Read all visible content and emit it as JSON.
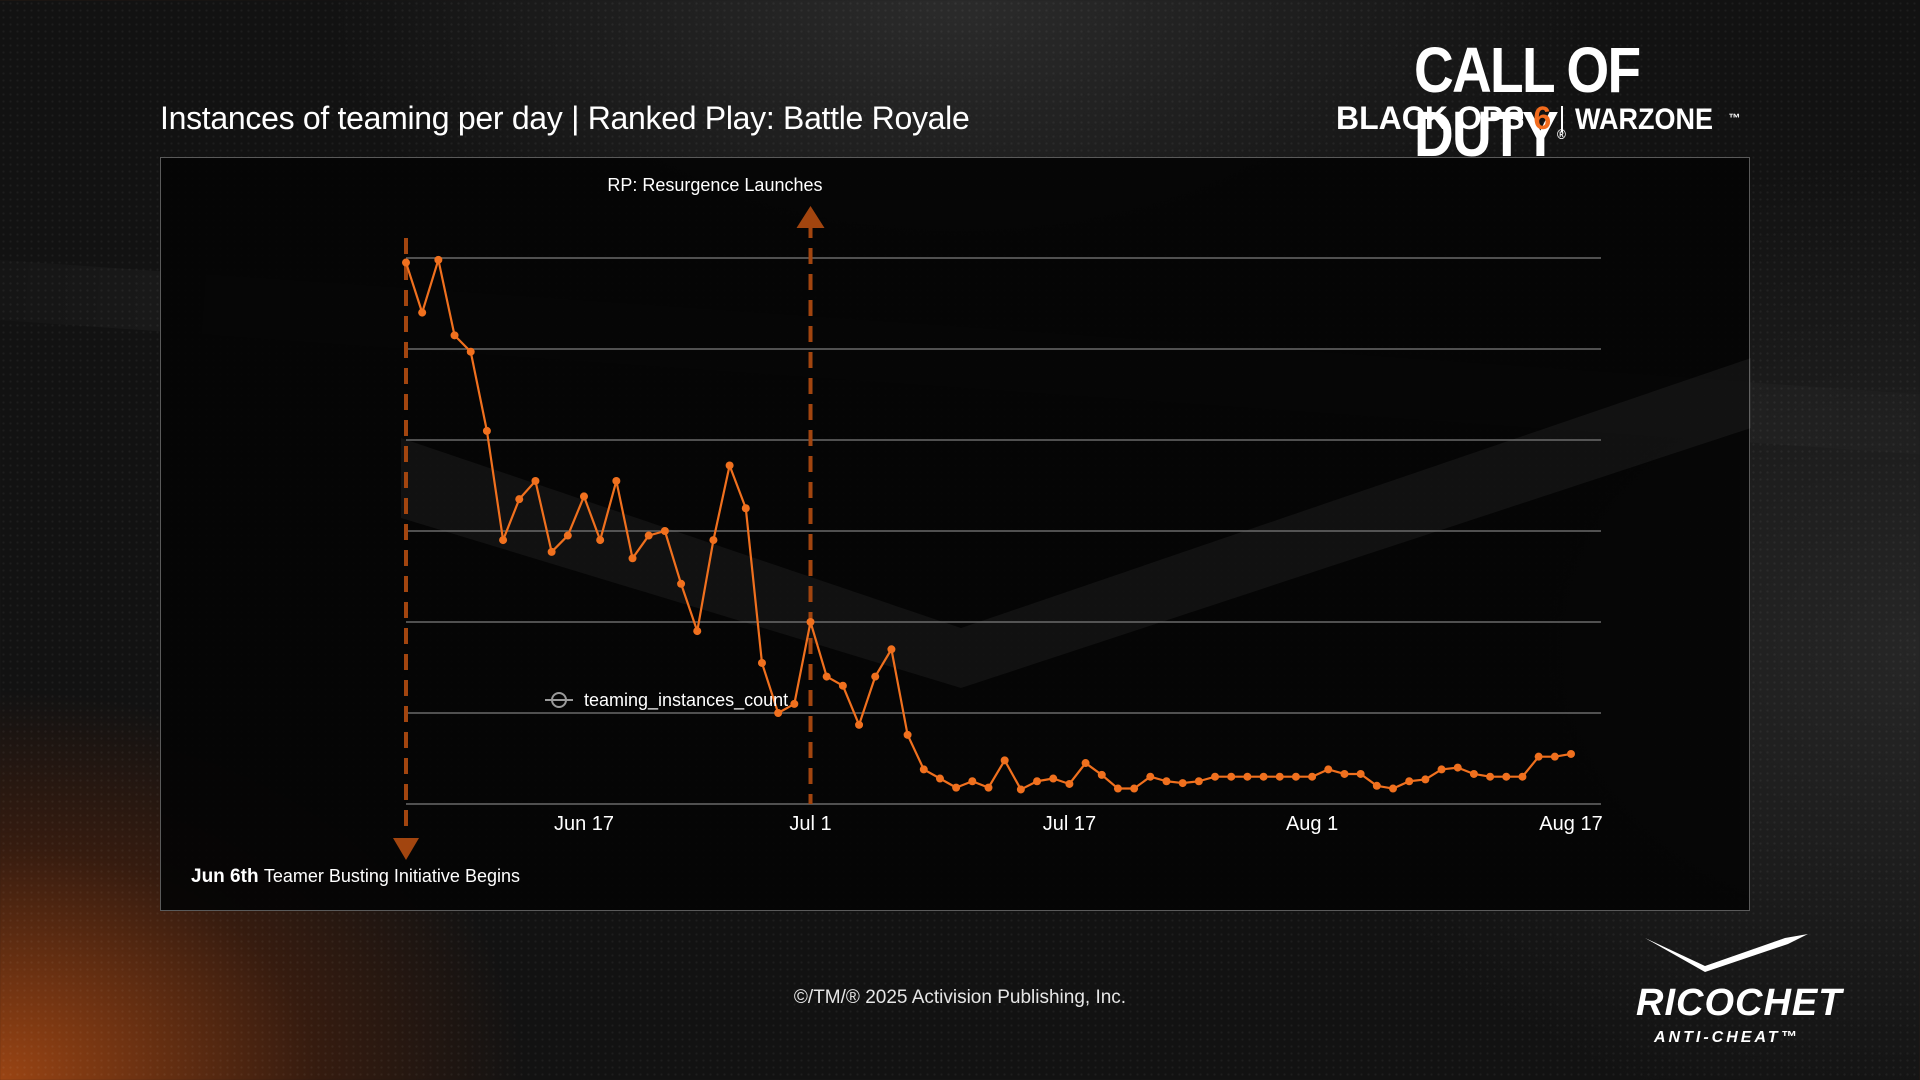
{
  "header": {
    "title": "Instances of teaming per day | Ranked Play: Battle Royale"
  },
  "logo": {
    "line1": "CALL OF DUTY",
    "line2_part1": "BLACK OPS ",
    "line2_part2": "6",
    "line2_part3": "WARZONE",
    "trademark": "™",
    "registered": "®"
  },
  "footer": {
    "copyright": "©/TM/® 2025 Activision Publishing, Inc."
  },
  "ricochet": {
    "name": "RICOCHET",
    "sub": "ANTI-CHEAT™"
  },
  "colors": {
    "series": "#f0701e",
    "annotation": "#a2450f",
    "grid": "#6a6a6a",
    "background": "#121212"
  },
  "chart_data": {
    "type": "line",
    "title": "Instances of teaming per day | Ranked Play: Battle Royale",
    "xlabel": "",
    "ylabel": "",
    "grid": true,
    "y_tick_labels_shown": false,
    "ylim": [
      0,
      6
    ],
    "xlim": [
      "2025-06-06",
      "2025-08-17"
    ],
    "x_ticks": [
      {
        "date": "2025-06-17",
        "label": "Jun 17"
      },
      {
        "date": "2025-07-01",
        "label": "Jul 1"
      },
      {
        "date": "2025-07-17",
        "label": "Jul 17"
      },
      {
        "date": "2025-08-01",
        "label": "Aug 1"
      },
      {
        "date": "2025-08-17",
        "label": "Aug 17"
      }
    ],
    "legend": {
      "position": "bottom",
      "entries": [
        "teaming_instances_count"
      ]
    },
    "series": [
      {
        "name": "teaming_instances_count",
        "x": [
          "2025-06-06",
          "2025-06-07",
          "2025-06-08",
          "2025-06-09",
          "2025-06-10",
          "2025-06-11",
          "2025-06-12",
          "2025-06-13",
          "2025-06-14",
          "2025-06-15",
          "2025-06-16",
          "2025-06-17",
          "2025-06-18",
          "2025-06-19",
          "2025-06-20",
          "2025-06-21",
          "2025-06-22",
          "2025-06-23",
          "2025-06-24",
          "2025-06-25",
          "2025-06-26",
          "2025-06-27",
          "2025-06-28",
          "2025-06-29",
          "2025-06-30",
          "2025-07-01",
          "2025-07-02",
          "2025-07-03",
          "2025-07-04",
          "2025-07-05",
          "2025-07-06",
          "2025-07-07",
          "2025-07-08",
          "2025-07-09",
          "2025-07-10",
          "2025-07-11",
          "2025-07-12",
          "2025-07-13",
          "2025-07-14",
          "2025-07-15",
          "2025-07-16",
          "2025-07-17",
          "2025-07-18",
          "2025-07-19",
          "2025-07-20",
          "2025-07-21",
          "2025-07-22",
          "2025-07-23",
          "2025-07-24",
          "2025-07-25",
          "2025-07-26",
          "2025-07-27",
          "2025-07-28",
          "2025-07-29",
          "2025-07-30",
          "2025-07-31",
          "2025-08-01",
          "2025-08-02",
          "2025-08-03",
          "2025-08-04",
          "2025-08-05",
          "2025-08-06",
          "2025-08-07",
          "2025-08-08",
          "2025-08-09",
          "2025-08-10",
          "2025-08-11",
          "2025-08-12",
          "2025-08-13",
          "2025-08-14",
          "2025-08-15",
          "2025-08-16",
          "2025-08-17"
        ],
        "values": [
          5.95,
          5.4,
          5.98,
          5.15,
          4.97,
          4.1,
          2.9,
          3.35,
          3.55,
          2.77,
          2.95,
          3.38,
          2.9,
          3.55,
          2.7,
          2.95,
          3.0,
          2.42,
          1.9,
          2.9,
          3.72,
          3.25,
          1.55,
          1.0,
          1.1,
          2.0,
          1.4,
          1.3,
          0.87,
          1.4,
          1.7,
          0.76,
          0.38,
          0.28,
          0.18,
          0.25,
          0.18,
          0.48,
          0.16,
          0.25,
          0.28,
          0.22,
          0.45,
          0.32,
          0.17,
          0.17,
          0.3,
          0.25,
          0.23,
          0.25,
          0.3,
          0.3,
          0.3,
          0.3,
          0.3,
          0.3,
          0.3,
          0.38,
          0.33,
          0.33,
          0.2,
          0.17,
          0.25,
          0.27,
          0.38,
          0.4,
          0.33,
          0.3,
          0.3,
          0.3,
          0.52,
          0.52,
          0.55
        ]
      }
    ],
    "annotations": [
      {
        "date": "2025-06-06",
        "label_date": "Jun 6th",
        "label_text": "Teamer Busting Initiative Begins",
        "arrow": "down"
      },
      {
        "date": "2025-07-01",
        "label_text": "RP: Resurgence Launches",
        "arrow": "up"
      }
    ]
  }
}
